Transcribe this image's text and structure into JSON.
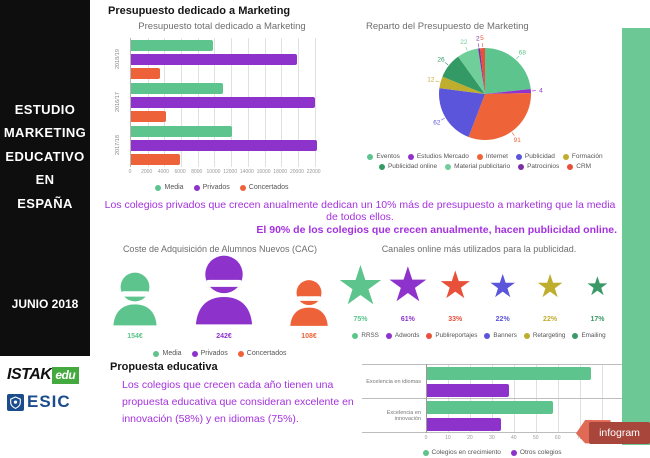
{
  "sidebar": {
    "title_lines": [
      "ESTUDIO",
      "MARKETING",
      "EDUCATIVO",
      "EN",
      "ESPAÑA"
    ],
    "date": "JUNIO 2018"
  },
  "logos": {
    "istak_main": "ISTAK",
    "istak_suffix": "edu",
    "esic_label": "ESIC"
  },
  "headings": {
    "budget": "Presupuesto dedicado a Marketing",
    "proposal": "Propuesta educativa"
  },
  "statements": {
    "line1": "Los colegios privados que crecen anualmente dedican un 10% más de presupuesto a marketing que la media de todos ellos.",
    "line2": "El 90% de los colegios que crecen anualmente, hacen publicidad online."
  },
  "proposal_text": "Los colegios que crecen cada año tienen una propuesta educativa que consideran excelente en innovación (58%) y en idiomas (75%).",
  "infogram_label": "infogram",
  "accent_colors": {
    "green": "#5cc48c",
    "purple": "#8e32cc",
    "orange": "#ee6239",
    "indigo": "#5a55db",
    "olive": "#bfad2e",
    "dark_green": "#3a9966",
    "red": "#e8503a",
    "text_purple": "#a431de",
    "side_green_bar": "#6cc894"
  },
  "chart_data": [
    {
      "id": "budget_total",
      "type": "bar",
      "orientation": "horizontal",
      "title": "Presupuesto total dedicado a Marketing",
      "categories": [
        "2018/19",
        "2016/17",
        "2017/18"
      ],
      "series": [
        {
          "name": "Media",
          "color": "#5cc48c",
          "values": [
            9800,
            11000,
            12100
          ]
        },
        {
          "name": "Privados",
          "color": "#8e32cc",
          "values": [
            19900,
            22100,
            22300
          ]
        },
        {
          "name": "Concertados",
          "color": "#ee6239",
          "values": [
            3500,
            4200,
            5900
          ]
        }
      ],
      "xlim": [
        0,
        23000
      ],
      "xticks": [
        0,
        2000,
        4000,
        6000,
        8000,
        10000,
        12000,
        14000,
        16000,
        18000,
        20000,
        22000
      ],
      "grid": true,
      "legend_position": "bottom"
    },
    {
      "id": "budget_share",
      "type": "pie",
      "title": "Reparto del Presupuesto de Marketing",
      "labels": [
        "Eventos",
        "Estudios Mercado",
        "Internet",
        "Publicidad",
        "Formación",
        "Publicidad online",
        "Material publicitario",
        "Patrocinios",
        "CRM"
      ],
      "values": [
        68,
        4,
        91,
        62,
        12,
        26,
        22,
        2,
        5
      ],
      "colors": [
        "#5cc48c",
        "#9232cc",
        "#ee6337",
        "#5a55db",
        "#bfad2e",
        "#339a66",
        "#6fce99",
        "#7b2fa5",
        "#e8503a"
      ],
      "legend_position": "bottom"
    },
    {
      "id": "cac",
      "type": "pictograph-person",
      "title": "Coste de Adquisición de Alumnos Nuevos (CAC)",
      "items": [
        {
          "label": "Media",
          "value": "154€",
          "color": "#5cc48c",
          "size": 60
        },
        {
          "label": "Privados",
          "value": "242€",
          "color": "#8e32cc",
          "size": 78
        },
        {
          "label": "Concertados",
          "value": "108€",
          "color": "#ee6239",
          "size": 52
        }
      ]
    },
    {
      "id": "channels",
      "type": "pictograph-star",
      "title": "Canales online más utilizados para la publicidad.",
      "items": [
        {
          "label": "RRSS",
          "value": "75%",
          "color": "#5cc48c",
          "size": 54
        },
        {
          "label": "Adwords",
          "value": "61%",
          "color": "#8e32cc",
          "size": 48
        },
        {
          "label": "Publireportajes",
          "value": "33%",
          "color": "#e8503a",
          "size": 38
        },
        {
          "label": "Banners",
          "value": "22%",
          "color": "#5a55db",
          "size": 32
        },
        {
          "label": "Retargeting",
          "value": "22%",
          "color": "#bfad2e",
          "size": 32
        },
        {
          "label": "Emailing",
          "value": "17%",
          "color": "#3a9966",
          "size": 26
        }
      ]
    },
    {
      "id": "proposal_chart",
      "type": "bar",
      "orientation": "horizontal",
      "categories": [
        "Excelencia en idiomas",
        "Excelencia en innovación"
      ],
      "series": [
        {
          "name": "Colegios en crecimiento",
          "color": "#5cc48c",
          "values": [
            75,
            58
          ]
        },
        {
          "name": "Otros colegios",
          "color": "#8e32cc",
          "values": [
            38,
            34
          ]
        }
      ],
      "xlim": [
        0,
        82
      ],
      "xticks": [
        0,
        10,
        20,
        30,
        40,
        50,
        60,
        70,
        80
      ],
      "grid": true,
      "legend_position": "bottom"
    }
  ]
}
